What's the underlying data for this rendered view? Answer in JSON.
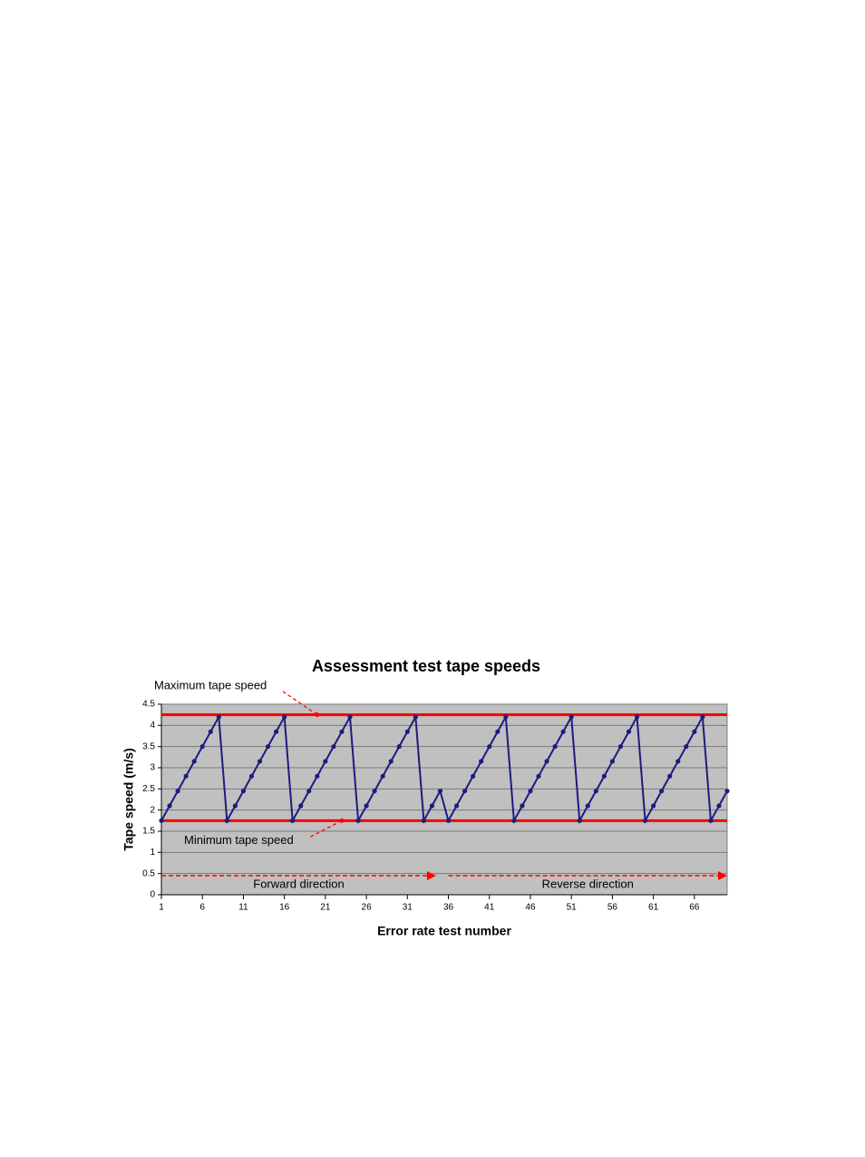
{
  "chart_data": {
    "type": "line",
    "title": "Assessment test tape speeds",
    "x_label": "Error rate test number",
    "y_label": "Tape speed (m/s)",
    "x": [
      1,
      2,
      3,
      4,
      5,
      6,
      7,
      8,
      9,
      10,
      11,
      12,
      13,
      14,
      15,
      16,
      17,
      18,
      19,
      20,
      21,
      22,
      23,
      24,
      25,
      26,
      27,
      28,
      29,
      30,
      31,
      32,
      33,
      34,
      35,
      36,
      37,
      38,
      39,
      40,
      41,
      42,
      43,
      44,
      45,
      46,
      47,
      48,
      49,
      50,
      51,
      52,
      53,
      54,
      55,
      56,
      57,
      58,
      59,
      60,
      61,
      62,
      63,
      64,
      65,
      66,
      67,
      68,
      69,
      70
    ],
    "series": [
      {
        "color": "#1c1c80",
        "values": [
          1.75,
          2.1,
          2.45,
          2.8,
          3.15,
          3.5,
          3.85,
          4.2,
          1.75,
          2.1,
          2.45,
          2.8,
          3.15,
          3.5,
          3.85,
          4.2,
          1.75,
          2.1,
          2.45,
          2.8,
          3.15,
          3.5,
          3.85,
          4.2,
          1.75,
          2.1,
          2.45,
          2.8,
          3.15,
          3.5,
          3.85,
          4.2,
          1.75,
          2.1,
          2.45,
          1.75,
          2.1,
          2.45,
          2.8,
          3.15,
          3.5,
          3.85,
          4.2,
          1.75,
          2.1,
          2.45,
          2.8,
          3.15,
          3.5,
          3.85,
          4.2,
          1.75,
          2.1,
          2.45,
          2.8,
          3.15,
          3.5,
          3.85,
          4.2,
          1.75,
          2.1,
          2.45,
          2.8,
          3.15,
          3.5,
          3.85,
          4.2,
          1.75,
          2.1,
          2.45
        ]
      }
    ],
    "xlim": [
      1,
      70
    ],
    "xticks": [
      1,
      6,
      11,
      16,
      21,
      26,
      31,
      36,
      41,
      46,
      51,
      56,
      61,
      66
    ],
    "ylim": [
      0,
      4.5
    ],
    "yticks": [
      0,
      0.5,
      1,
      1.5,
      2,
      2.5,
      3,
      3.5,
      4,
      4.5
    ],
    "grid": true,
    "reference_lines": [
      {
        "label": "Maximum tape speed",
        "value": 4.25,
        "x": 20,
        "color": "#ff0000"
      },
      {
        "label": "Minimum tape speed",
        "value": 1.75,
        "x": 23,
        "color": "#ff0000"
      }
    ],
    "direction_arrows": [
      {
        "label": "Forward direction",
        "y": 0.45,
        "x": [
          1,
          34.5
        ],
        "color": "#ff0000"
      },
      {
        "label": "Reverse direction",
        "y": 0.45,
        "x": [
          36,
          70
        ],
        "color": "#ff0000"
      }
    ]
  }
}
